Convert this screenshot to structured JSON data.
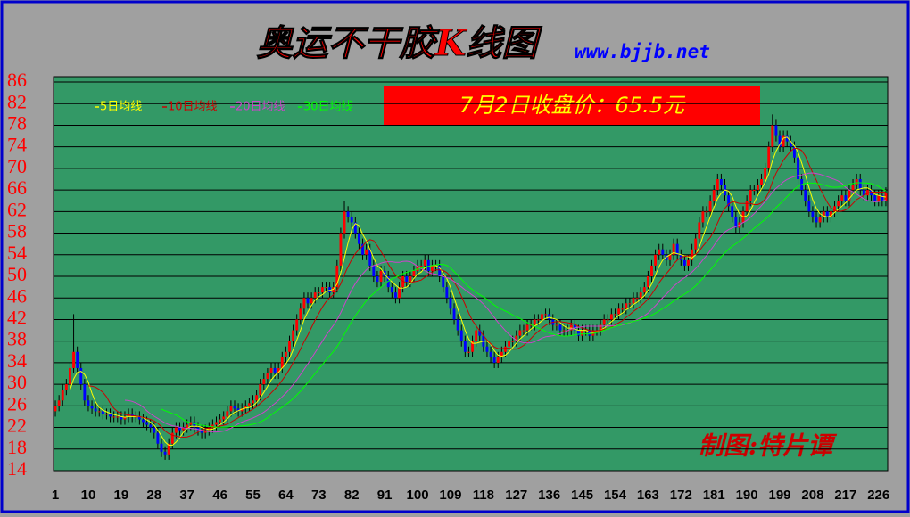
{
  "chart_data": {
    "type": "candlestick",
    "title": "奥运不干胶K线图",
    "subtitle": "www.bjjb.net",
    "annotation": "7月2日收盘价：65.5元",
    "footer": "制图:特片谭",
    "up_color": "#ff0000",
    "down_color": "#0000ff",
    "wick_color": "#000000",
    "background": "#339966",
    "grid": true,
    "xlim": [
      0.5,
      228.5
    ],
    "xticks": [
      1,
      10,
      19,
      28,
      37,
      46,
      55,
      64,
      73,
      82,
      91,
      100,
      109,
      118,
      127,
      136,
      145,
      154,
      163,
      172,
      181,
      190,
      199,
      208,
      217,
      226
    ],
    "ylim": [
      14,
      86
    ],
    "yticks": [
      14,
      18,
      22,
      26,
      30,
      34,
      38,
      42,
      46,
      50,
      54,
      58,
      62,
      66,
      70,
      74,
      78,
      82,
      86
    ],
    "open": [
      25,
      26,
      27,
      29,
      30,
      33,
      36,
      33,
      30,
      27,
      26,
      25.5,
      25,
      25,
      24.5,
      24.5,
      24,
      24,
      24,
      23.5,
      24,
      24.5,
      24,
      24,
      23.5,
      23,
      22.5,
      22,
      21,
      19,
      17.5,
      17,
      19,
      21,
      22,
      21.5,
      22,
      22.5,
      23,
      22,
      21.5,
      21,
      21.5,
      22,
      22.5,
      23,
      23.5,
      24,
      25,
      26,
      25.5,
      25,
      25.5,
      26,
      26.5,
      27,
      28,
      30,
      31,
      32,
      33,
      32,
      33,
      35,
      36,
      38,
      40,
      42,
      44,
      46,
      45,
      46,
      47,
      47,
      48,
      48,
      47,
      48,
      52,
      58,
      62,
      61,
      60,
      58,
      56,
      54,
      55,
      52,
      50,
      49,
      51,
      50,
      48,
      47,
      46,
      48,
      50,
      49,
      50,
      51,
      52,
      52,
      53,
      51,
      52,
      52,
      50,
      48,
      46,
      44,
      42,
      40,
      38,
      36,
      36,
      38,
      40,
      39,
      37,
      36,
      35,
      34,
      35,
      36,
      37,
      38,
      38,
      39,
      40,
      40,
      41,
      41,
      42,
      42,
      43,
      43,
      42,
      41,
      41,
      40,
      40,
      40,
      41,
      40,
      39,
      40,
      40,
      39,
      40,
      40,
      41,
      42,
      42,
      43,
      43,
      44,
      44,
      45,
      45,
      46,
      46,
      47,
      48,
      50,
      52,
      54,
      55,
      54,
      53,
      54,
      56,
      54,
      53,
      52,
      53,
      55,
      57,
      60,
      62,
      62,
      64,
      66,
      68,
      67,
      65,
      63,
      61,
      59,
      60,
      62,
      64,
      66,
      66,
      67,
      68,
      70,
      74,
      78,
      76,
      74,
      76,
      75,
      74,
      72,
      68,
      66,
      64,
      62,
      61,
      60,
      61,
      62,
      61,
      62,
      63,
      64,
      65,
      64,
      66,
      67,
      68,
      66,
      65,
      66,
      65,
      64,
      65,
      64
    ],
    "high": [
      27,
      28,
      30,
      31,
      34,
      43,
      37,
      34,
      31,
      28,
      27,
      26.5,
      26,
      26,
      25.5,
      25.5,
      25,
      25,
      25,
      25,
      25.5,
      25.5,
      25,
      25,
      24.5,
      24,
      23.5,
      23,
      22,
      20,
      18.5,
      20,
      22,
      23,
      23,
      23,
      23.5,
      24,
      24,
      23,
      22.5,
      22.5,
      23,
      23.5,
      24,
      24.5,
      25,
      26,
      27,
      27,
      26.5,
      26.5,
      27,
      27.5,
      28,
      29,
      31,
      32,
      33,
      34,
      34,
      34,
      36,
      37,
      39,
      41,
      43,
      45,
      47,
      47,
      47,
      48,
      48,
      49,
      49,
      49,
      49,
      53,
      59,
      64,
      63,
      62,
      61,
      59,
      57,
      56,
      56,
      53,
      51,
      52,
      52,
      51,
      49,
      48,
      49,
      51,
      51,
      51,
      52,
      53,
      53,
      54,
      54,
      53,
      53,
      53,
      51,
      49,
      47,
      45,
      43,
      41,
      39,
      37,
      39,
      41,
      41,
      40,
      38,
      37,
      36,
      36,
      37,
      38,
      39,
      39,
      40,
      41,
      41,
      42,
      42,
      43,
      43,
      44,
      44,
      44,
      43,
      42,
      42,
      41,
      41,
      42,
      42,
      41,
      41,
      41,
      41,
      41,
      41,
      42,
      43,
      43,
      44,
      44,
      45,
      45,
      46,
      46,
      47,
      47,
      48,
      49,
      51,
      53,
      55,
      56,
      56,
      55,
      55,
      57,
      57,
      55,
      54,
      54,
      56,
      58,
      61,
      63,
      63,
      65,
      67,
      69,
      69,
      68,
      66,
      64,
      62,
      61,
      63,
      65,
      67,
      67,
      68,
      69,
      71,
      75,
      80,
      79,
      77,
      77,
      77,
      76,
      75,
      73,
      69,
      67,
      65,
      63,
      62,
      62,
      63,
      63,
      63,
      64,
      65,
      66,
      66,
      67,
      68,
      69,
      69,
      67,
      67,
      67,
      66,
      66,
      66,
      66.5
    ],
    "low": [
      24,
      25,
      26,
      28,
      29,
      32,
      32,
      29,
      26,
      25,
      24.5,
      24,
      24,
      23.5,
      23.5,
      23,
      23,
      23,
      22.5,
      22.5,
      23,
      23,
      23,
      22.5,
      22,
      21.5,
      21,
      20,
      18,
      16.5,
      16,
      16,
      18,
      20,
      20.5,
      20.5,
      21,
      21.5,
      21,
      20.5,
      20,
      20,
      20.5,
      21,
      21.5,
      22,
      22.5,
      23,
      24,
      24.5,
      24,
      24,
      24.5,
      25,
      25.5,
      26,
      27,
      29,
      30,
      31,
      31,
      31,
      32,
      34,
      35,
      37,
      39,
      41,
      43,
      44,
      44,
      45,
      46,
      46,
      47,
      46,
      46,
      47,
      51,
      57,
      60,
      59,
      57,
      55,
      53,
      53,
      51,
      49,
      48,
      48,
      49,
      47,
      46,
      45,
      45,
      47,
      48,
      48,
      49,
      50,
      51,
      51,
      50,
      50,
      51,
      49,
      47,
      45,
      43,
      41,
      39,
      37,
      35,
      35,
      35,
      37,
      38,
      36,
      35,
      34,
      33,
      33,
      34,
      35,
      36,
      37,
      37,
      38,
      39,
      39,
      40,
      40,
      41,
      41,
      42,
      41,
      40,
      40,
      39,
      39,
      39,
      39,
      39,
      38,
      38,
      39,
      38,
      38,
      39,
      39,
      40,
      41,
      41,
      42,
      42,
      43,
      43,
      44,
      44,
      45,
      45,
      46,
      47,
      49,
      51,
      53,
      53,
      52,
      52,
      53,
      53,
      52,
      51,
      51,
      52,
      54,
      56,
      59,
      61,
      61,
      63,
      65,
      66,
      64,
      62,
      60,
      58,
      58,
      59,
      61,
      63,
      65,
      65,
      66,
      67,
      69,
      73,
      75,
      73,
      73,
      74,
      73,
      71,
      67,
      65,
      63,
      61,
      60,
      59,
      59,
      60,
      60,
      60,
      61,
      62,
      63,
      63,
      63,
      65,
      66,
      65,
      64,
      64,
      64,
      63,
      63,
      63,
      63
    ],
    "close": [
      26,
      27,
      29,
      30,
      33,
      36,
      33,
      30,
      27,
      26,
      25.5,
      25,
      25,
      24.5,
      24.5,
      24,
      24,
      24,
      23.5,
      24,
      24.5,
      24,
      24,
      23.5,
      23,
      22.5,
      22,
      21,
      19,
      17.5,
      17,
      19,
      21,
      22,
      21.5,
      22,
      22.5,
      23,
      22,
      21.5,
      21,
      21.5,
      22,
      22.5,
      23,
      23.5,
      24,
      25,
      26,
      25.5,
      25,
      25.5,
      26,
      26.5,
      27,
      28,
      30,
      31,
      32,
      33,
      32,
      33,
      35,
      36,
      38,
      40,
      42,
      44,
      46,
      45,
      46,
      47,
      47,
      48,
      48,
      47,
      48,
      52,
      58,
      62,
      61,
      60,
      58,
      56,
      54,
      55,
      52,
      50,
      49,
      51,
      50,
      48,
      47,
      46,
      48,
      50,
      49,
      50,
      51,
      52,
      52,
      53,
      51,
      52,
      52,
      50,
      48,
      46,
      44,
      42,
      40,
      38,
      36,
      36,
      38,
      40,
      39,
      37,
      36,
      35,
      34,
      35,
      36,
      37,
      38,
      38,
      39,
      40,
      40,
      41,
      41,
      42,
      42,
      43,
      43,
      42,
      41,
      41,
      40,
      40,
      40,
      41,
      40,
      39,
      40,
      40,
      39,
      40,
      40,
      41,
      42,
      42,
      43,
      43,
      44,
      44,
      45,
      45,
      46,
      46,
      47,
      48,
      50,
      52,
      54,
      55,
      54,
      53,
      54,
      56,
      54,
      53,
      52,
      53,
      55,
      57,
      60,
      62,
      62,
      64,
      66,
      68,
      67,
      65,
      63,
      61,
      59,
      60,
      62,
      64,
      66,
      66,
      67,
      68,
      70,
      74,
      78,
      76,
      74,
      76,
      75,
      74,
      72,
      68,
      66,
      64,
      62,
      61,
      60,
      61,
      62,
      61,
      62,
      63,
      64,
      65,
      64,
      66,
      67,
      68,
      66,
      65,
      66,
      65,
      64,
      65,
      64,
      65.5
    ],
    "series": [
      {
        "name": "5日均线",
        "color": "#ffff00"
      },
      {
        "name": "10日均线",
        "color": "#cc0000"
      },
      {
        "name": "20日均线",
        "color": "#cc44cc"
      },
      {
        "name": "30日均线",
        "color": "#00ff00"
      }
    ]
  }
}
